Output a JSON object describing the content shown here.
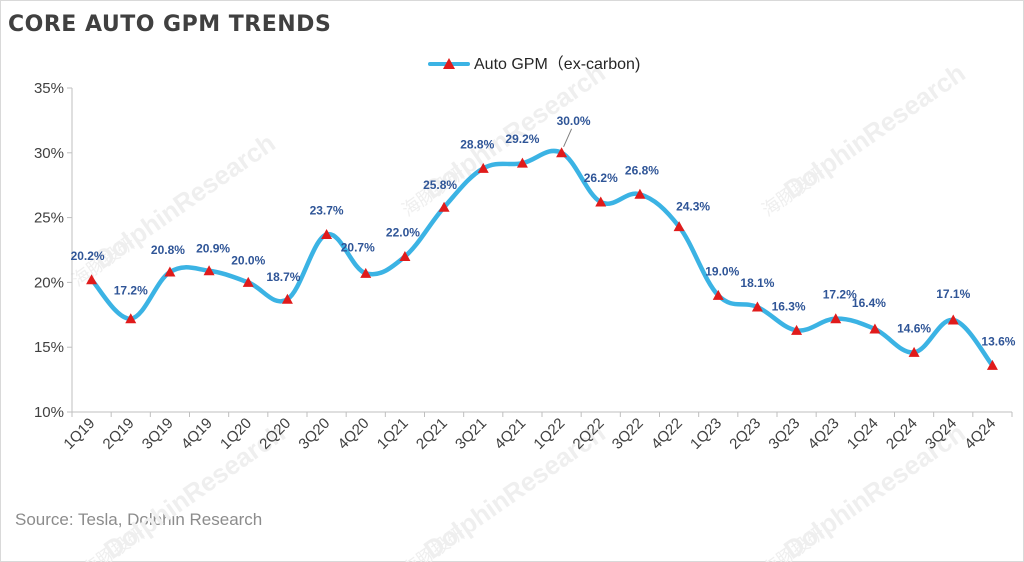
{
  "title": "CORE AUTO GPM TRENDS",
  "source": "Source: Tesla, Dolphin Research",
  "watermark": {
    "brand": "DolphinResearch",
    "cn": "海豚投研"
  },
  "colors": {
    "line": "#3bb3e4",
    "marker": "#e01b1b",
    "data_label": "#2f5597",
    "axis": "#bfbfbf"
  },
  "chart_data": {
    "type": "line",
    "title": "",
    "xlabel": "",
    "ylabel": "",
    "ylim": [
      10,
      35
    ],
    "yticks": [
      10,
      15,
      20,
      25,
      30,
      35
    ],
    "ytick_labels": [
      "10%",
      "15%",
      "20%",
      "25%",
      "30%",
      "35%"
    ],
    "legend_position": "top-center",
    "grid": false,
    "categories": [
      "1Q19",
      "2Q19",
      "3Q19",
      "4Q19",
      "1Q20",
      "2Q20",
      "3Q20",
      "4Q20",
      "1Q21",
      "2Q21",
      "3Q21",
      "4Q21",
      "1Q22",
      "2Q22",
      "3Q22",
      "4Q22",
      "1Q23",
      "2Q23",
      "3Q23",
      "4Q23",
      "1Q24",
      "2Q24",
      "3Q24",
      "4Q24"
    ],
    "series": [
      {
        "name": "Auto GPM（ex-carbon)",
        "marker": "triangle",
        "values": [
          20.2,
          17.2,
          20.8,
          20.9,
          20.0,
          18.7,
          23.7,
          20.7,
          22.0,
          25.8,
          28.8,
          29.2,
          30.0,
          26.2,
          26.8,
          24.3,
          19.0,
          18.1,
          16.3,
          17.2,
          16.4,
          14.6,
          17.1,
          13.6
        ],
        "labels": [
          "20.2%",
          "17.2%",
          "20.8%",
          "20.9%",
          "20.0%",
          "18.7%",
          "23.7%",
          "20.7%",
          "22.0%",
          "25.8%",
          "28.8%",
          "29.2%",
          "30.0%",
          "26.2%",
          "26.8%",
          "24.3%",
          "19.0%",
          "18.1%",
          "16.3%",
          "17.2%",
          "16.4%",
          "14.6%",
          "17.1%",
          "13.6%"
        ]
      }
    ]
  }
}
